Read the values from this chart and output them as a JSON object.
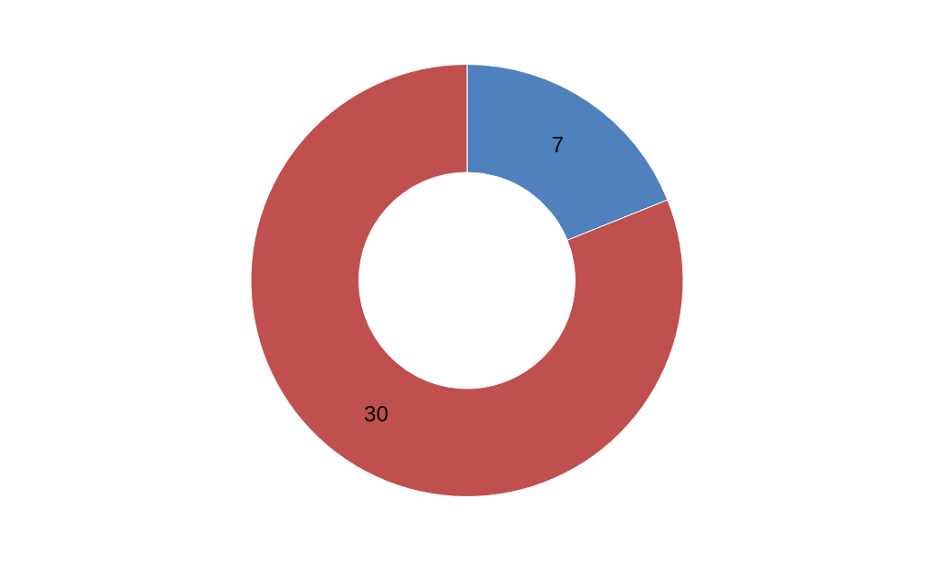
{
  "chart_data": {
    "type": "donut",
    "categories": [
      null,
      null
    ],
    "values": [
      7,
      30
    ],
    "colors": [
      "#4f81bd",
      "#c0504d"
    ],
    "data_labels": true
  }
}
